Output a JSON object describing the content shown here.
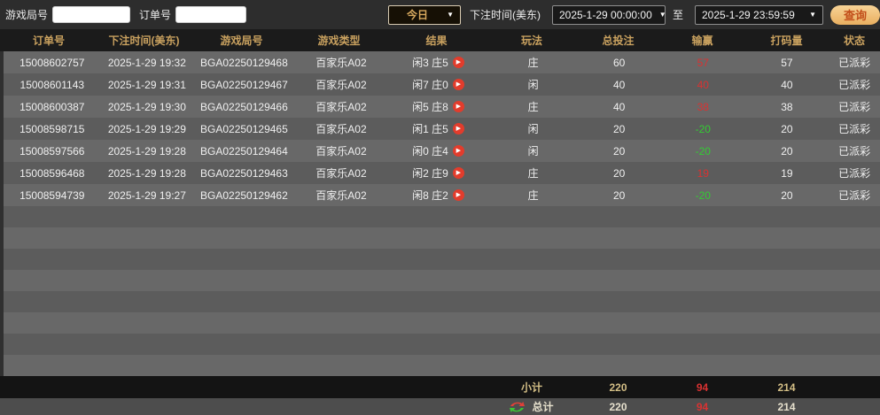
{
  "filters": {
    "game_round_label": "游戏局号",
    "order_label": "订单号",
    "quick_range_value": "今日",
    "bet_time_label": "下注时间(美东)",
    "date_from": "2025-1-29 00:00:00",
    "to_label": "至",
    "date_to": "2025-1-29 23:59:59",
    "query_label": "查询"
  },
  "icons": {
    "dropdown": "▼",
    "play": "▶"
  },
  "table": {
    "columns": [
      "订单号",
      "下注时间(美东)",
      "游戏局号",
      "游戏类型",
      "结果",
      "玩法",
      "总投注",
      "输赢",
      "打码量",
      "状态"
    ],
    "rows": [
      {
        "order_no": "15008602757",
        "bet_time": "2025-1-29 19:32",
        "round_no": "BGA02250129468",
        "game_type": "百家乐A02",
        "result": "闲3 庄5",
        "play": "庄",
        "total_bet": "60",
        "win_loss": "57",
        "win_loss_color": "red",
        "turnover": "57",
        "status": "已派彩"
      },
      {
        "order_no": "15008601143",
        "bet_time": "2025-1-29 19:31",
        "round_no": "BGA02250129467",
        "game_type": "百家乐A02",
        "result": "闲7 庄0",
        "play": "闲",
        "total_bet": "40",
        "win_loss": "40",
        "win_loss_color": "red",
        "turnover": "40",
        "status": "已派彩"
      },
      {
        "order_no": "15008600387",
        "bet_time": "2025-1-29 19:30",
        "round_no": "BGA02250129466",
        "game_type": "百家乐A02",
        "result": "闲5 庄8",
        "play": "庄",
        "total_bet": "40",
        "win_loss": "38",
        "win_loss_color": "red",
        "turnover": "38",
        "status": "已派彩"
      },
      {
        "order_no": "15008598715",
        "bet_time": "2025-1-29 19:29",
        "round_no": "BGA02250129465",
        "game_type": "百家乐A02",
        "result": "闲1 庄5",
        "play": "闲",
        "total_bet": "20",
        "win_loss": "-20",
        "win_loss_color": "green",
        "turnover": "20",
        "status": "已派彩"
      },
      {
        "order_no": "15008597566",
        "bet_time": "2025-1-29 19:28",
        "round_no": "BGA02250129464",
        "game_type": "百家乐A02",
        "result": "闲0 庄4",
        "play": "闲",
        "total_bet": "20",
        "win_loss": "-20",
        "win_loss_color": "green",
        "turnover": "20",
        "status": "已派彩"
      },
      {
        "order_no": "15008596468",
        "bet_time": "2025-1-29 19:28",
        "round_no": "BGA02250129463",
        "game_type": "百家乐A02",
        "result": "闲2 庄9",
        "play": "庄",
        "total_bet": "20",
        "win_loss": "19",
        "win_loss_color": "red",
        "turnover": "19",
        "status": "已派彩"
      },
      {
        "order_no": "15008594739",
        "bet_time": "2025-1-29 19:27",
        "round_no": "BGA02250129462",
        "game_type": "百家乐A02",
        "result": "闲8 庄2",
        "play": "庄",
        "total_bet": "20",
        "win_loss": "-20",
        "win_loss_color": "green",
        "turnover": "20",
        "status": "已派彩"
      }
    ],
    "subtotal": {
      "label": "小计",
      "total_bet": "220",
      "win_loss": "94",
      "turnover": "214"
    },
    "grand_total": {
      "label": "总计",
      "total_bet": "220",
      "win_loss": "94",
      "turnover": "214"
    }
  },
  "colors": {
    "accent_gold": "#c9a15f",
    "win_red": "#d93232",
    "loss_green": "#33cc33",
    "totals_text": "#d4bf86",
    "query_button_gold": "#eec27e"
  }
}
